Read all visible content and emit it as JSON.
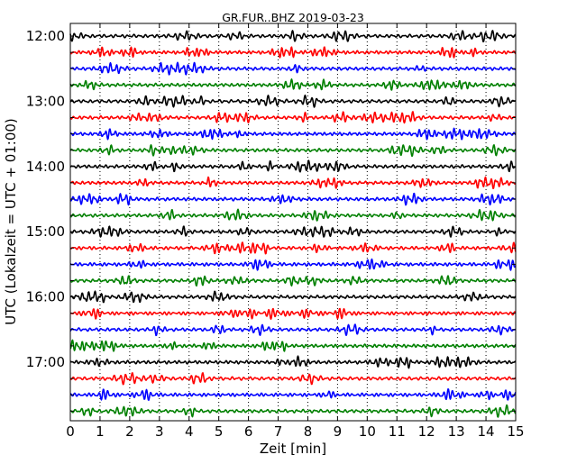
{
  "chart_data": {
    "type": "line",
    "title": "GR.FUR..BHZ 2019-03-23",
    "xlabel": "Zeit  [min]",
    "ylabel": "UTC (Lokalzeit = UTC + 01:00)",
    "xlim": [
      0,
      15
    ],
    "x_ticks": [
      "0",
      "1",
      "2",
      "3",
      "4",
      "5",
      "6",
      "7",
      "8",
      "9",
      "10",
      "11",
      "12",
      "13",
      "14",
      "15"
    ],
    "y_tick_labels": [
      "12:00",
      "13:00",
      "14:00",
      "15:00",
      "16:00",
      "17:00"
    ],
    "grid": "vertical dotted lines at each minute",
    "trace_interval_minutes": 15,
    "start_time": "12:00",
    "trace_count": 24,
    "trace_color_cycle": [
      "#000000",
      "#ff0000",
      "#0000ff",
      "#008000"
    ],
    "legend": "none"
  }
}
